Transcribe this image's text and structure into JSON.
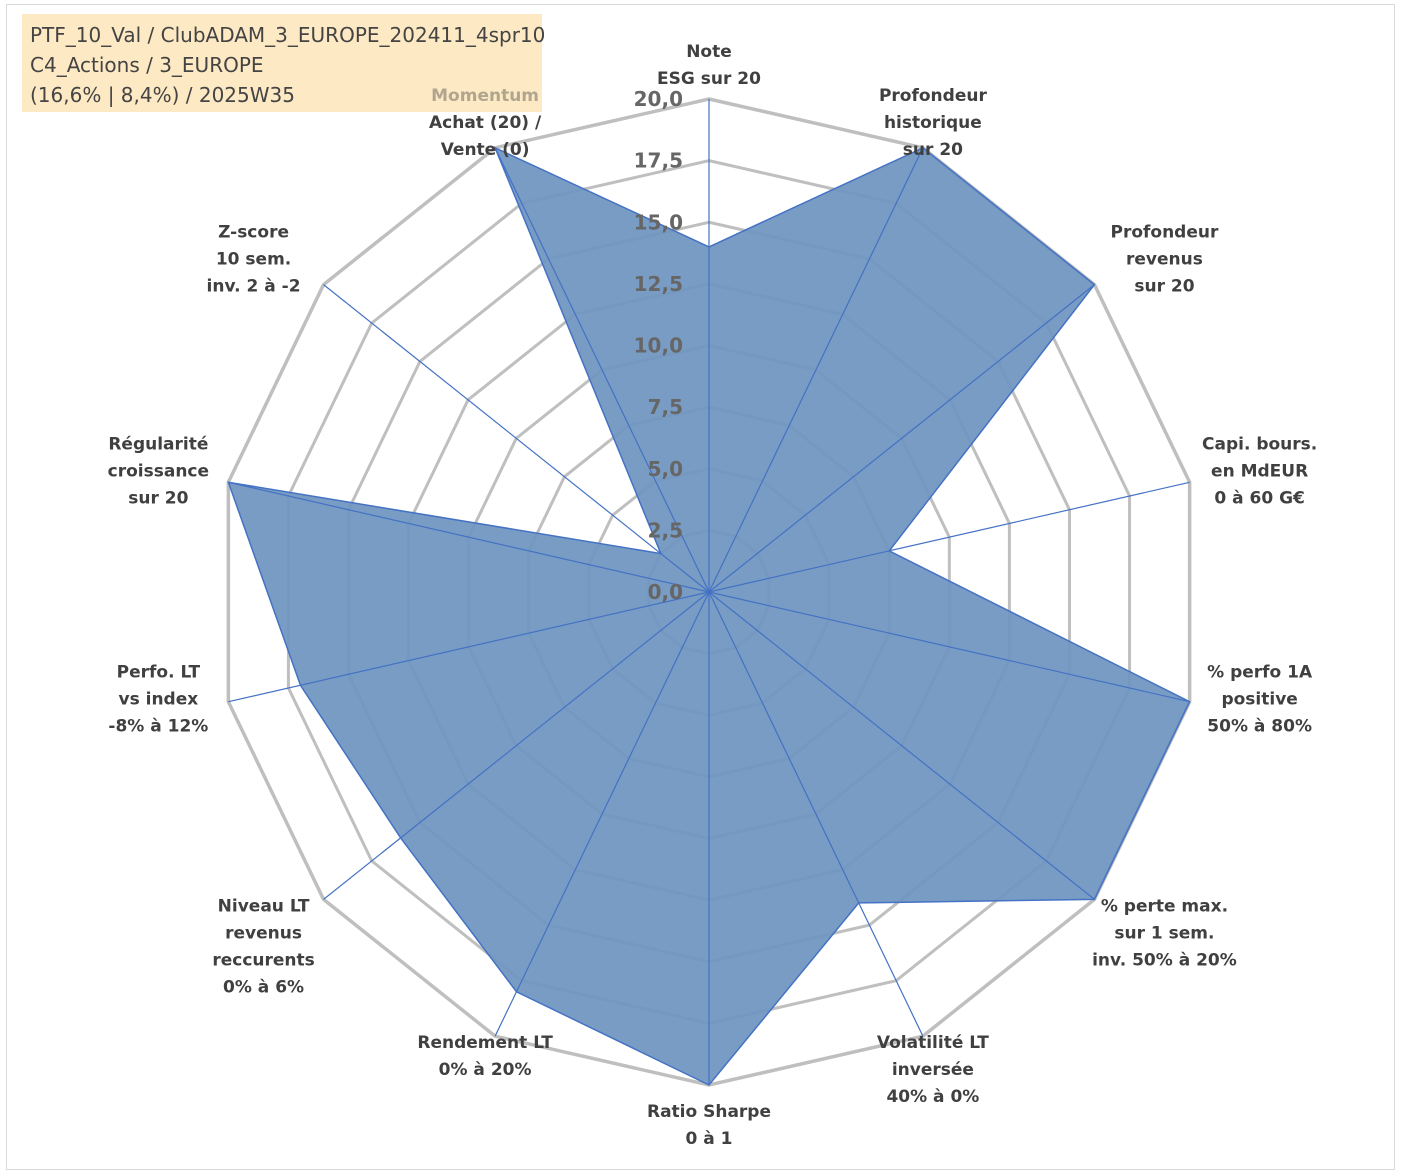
{
  "info": {
    "line1": "PTF_10_Val / ClubADAM_3_EUROPE_202411_4spr10",
    "line2": "C4_Actions / 3_EUROPE",
    "line3": "(16,6% | 8,4%) / 2025W35"
  },
  "colors": {
    "fill": "#6f95c0",
    "stroke": "#4472c4",
    "grid": "#bfbfbf",
    "label": "#404040",
    "highlight": "#b0a690",
    "info_bg": "#fde9c3"
  },
  "chart_data": {
    "type": "radar",
    "rmin": 0,
    "rmax": 20,
    "tick_step": 2.5,
    "ticks": [
      "0,0",
      "2,5",
      "5,0",
      "7,5",
      "10,0",
      "12,5",
      "15,0",
      "17,5",
      "20,0"
    ],
    "grid": true,
    "axes": [
      {
        "label": [
          "Note",
          "ESG sur 20"
        ],
        "value": 14
      },
      {
        "label": [
          "Profondeur",
          "historique",
          "sur 20"
        ],
        "value": 20
      },
      {
        "label": [
          "Profondeur",
          "revenus",
          "sur 20"
        ],
        "value": 20
      },
      {
        "label": [
          "Capi. bours.",
          "en MdEUR",
          "0 à 60 G€"
        ],
        "value": 7.5
      },
      {
        "label": [
          "% perfo 1A",
          "positive",
          "50% à 80%"
        ],
        "value": 20
      },
      {
        "label": [
          "% perte max.",
          "sur 1 sem.",
          "inv. 50% à 20%"
        ],
        "value": 20
      },
      {
        "label": [
          "Volatilité LT",
          "inversée",
          "40% à 0%"
        ],
        "value": 14
      },
      {
        "label": [
          "Ratio Sharpe",
          "0 à 1"
        ],
        "value": 20
      },
      {
        "label": [
          "Rendement LT",
          "0% à 20%"
        ],
        "value": 18
      },
      {
        "label": [
          "Niveau LT",
          "revenus",
          "reccurents",
          "0% à 6%"
        ],
        "value": 16
      },
      {
        "label": [
          "Perfo. LT",
          "vs index",
          "-8% à 12%"
        ],
        "value": 17
      },
      {
        "label": [
          "Régularité",
          "croissance",
          "sur 20"
        ],
        "value": 20
      },
      {
        "label": [
          "Z-score",
          "10 sem.",
          "inv. 2 à -2"
        ],
        "value": 2.5
      },
      {
        "label": [
          "Momentum",
          "Achat (20) /",
          "Vente (0)"
        ],
        "highlight_first_line": true,
        "value": 20
      }
    ]
  }
}
